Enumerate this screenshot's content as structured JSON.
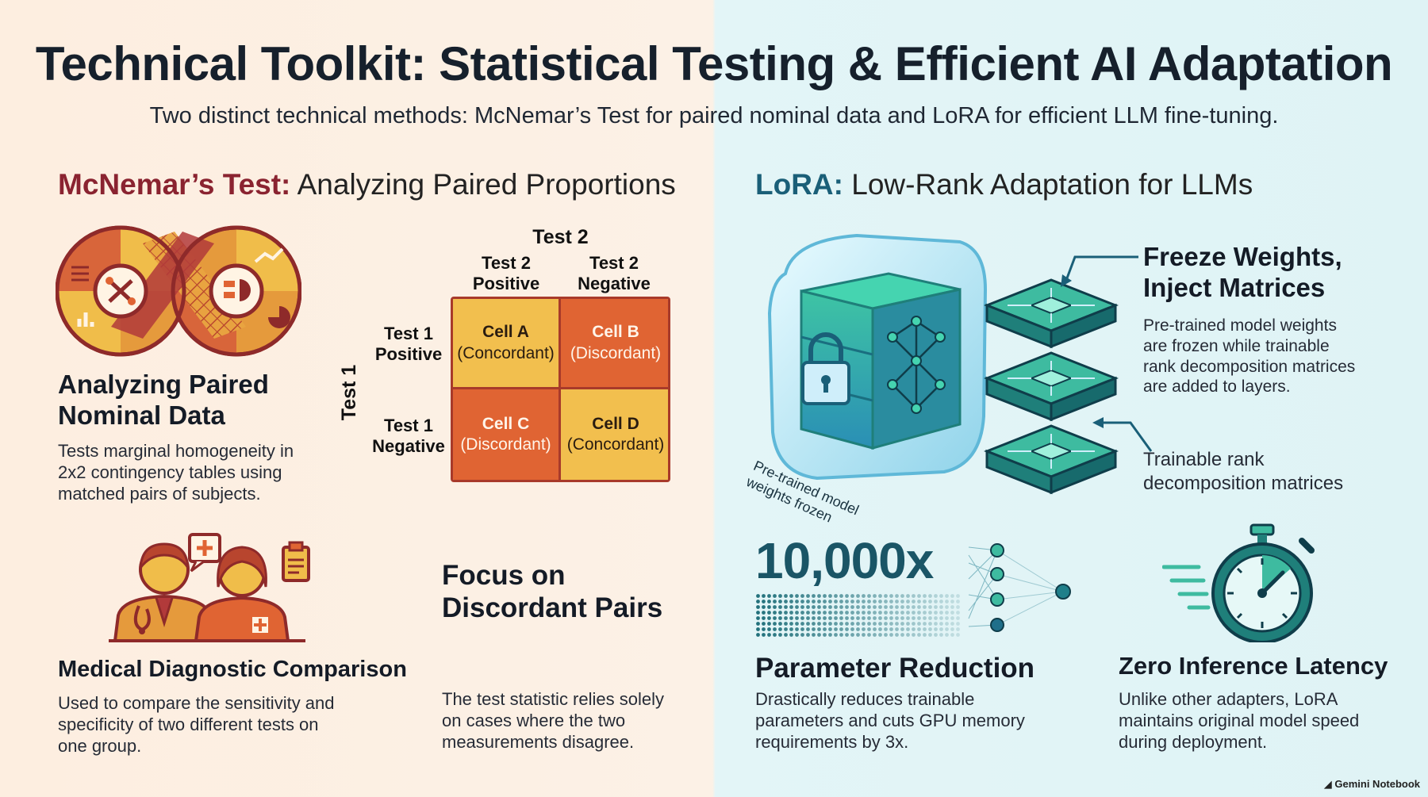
{
  "title": "Technical Toolkit: Statistical Testing & Efficient AI Adaptation",
  "subtitle": "Two distinct technical methods: McNemar’s Test for paired nominal data and LoRA for efficient LLM fine-tuning.",
  "mcnemar": {
    "head_bold": "McNemar’s Test:",
    "head_rest": " Analyzing Paired Proportions",
    "paired": {
      "heading_line1": "Analyzing Paired",
      "heading_line2": "Nominal Data",
      "body_line1": "Tests marginal homogeneity in",
      "body_line2": "2x2 contingency tables using",
      "body_line3": "matched pairs of subjects."
    },
    "matrix": {
      "test2_label": "Test 2",
      "test1_label": "Test 1",
      "col1_line1": "Test 2",
      "col1_line2": "Positive",
      "col2_line1": "Test 2",
      "col2_line2": "Negative",
      "row1_line1": "Test 1",
      "row1_line2": "Positive",
      "row2_line1": "Test 1",
      "row2_line2": "Negative",
      "cells": [
        {
          "name": "Cell A",
          "type": "(Concordant)"
        },
        {
          "name": "Cell B",
          "type": "(Discordant)"
        },
        {
          "name": "Cell C",
          "type": "(Discordant)"
        },
        {
          "name": "Cell D",
          "type": "(Concordant)"
        }
      ]
    },
    "medical": {
      "heading": "Medical Diagnostic Comparison",
      "body_line1": "Used to compare the sensitivity and",
      "body_line2": "specificity of two different tests on",
      "body_line3": "one group."
    },
    "discordant": {
      "heading_line1": "Focus on",
      "heading_line2": "Discordant Pairs",
      "body_line1": "The test statistic relies solely",
      "body_line2": "on cases where the two",
      "body_line3": "measurements disagree."
    }
  },
  "lora": {
    "head_bold": "LoRA:",
    "head_rest": " Low-Rank Adaptation for LLMs",
    "cube_caption_line1": "Pre-trained model",
    "cube_caption_line2": "weights frozen",
    "freeze": {
      "heading_line1": "Freeze Weights,",
      "heading_line2": "Inject Matrices",
      "body_line1": "Pre-trained model weights",
      "body_line2": "are frozen while trainable",
      "body_line3": "rank decomposition matrices",
      "body_line4": "are added to layers."
    },
    "trainable_line1": "Trainable rank",
    "trainable_line2": "decomposition matrices",
    "reduction": {
      "big_number": "10,000x",
      "heading": "Parameter Reduction",
      "body_line1": "Drastically reduces trainable",
      "body_line2": "parameters and cuts GPU memory",
      "body_line3": "requirements by 3x."
    },
    "latency": {
      "heading": "Zero Inference Latency",
      "body_line1": "Unlike other adapters, LoRA",
      "body_line2": "maintains original model speed",
      "body_line3": "during deployment."
    }
  },
  "footer_brand": "Gemini Notebook",
  "colors": {
    "mcnemar_accent": "#8a2330",
    "lora_accent": "#1a5f78",
    "cell_yellow": "#f2bf4e",
    "cell_orange": "#e06433",
    "teal": "#1f8f86"
  },
  "icons": [
    "infinity-data-icon",
    "doctors-icon",
    "ice-cube-lock-icon",
    "circuit-layers-icon",
    "neural-network-icon",
    "stopwatch-icon"
  ]
}
